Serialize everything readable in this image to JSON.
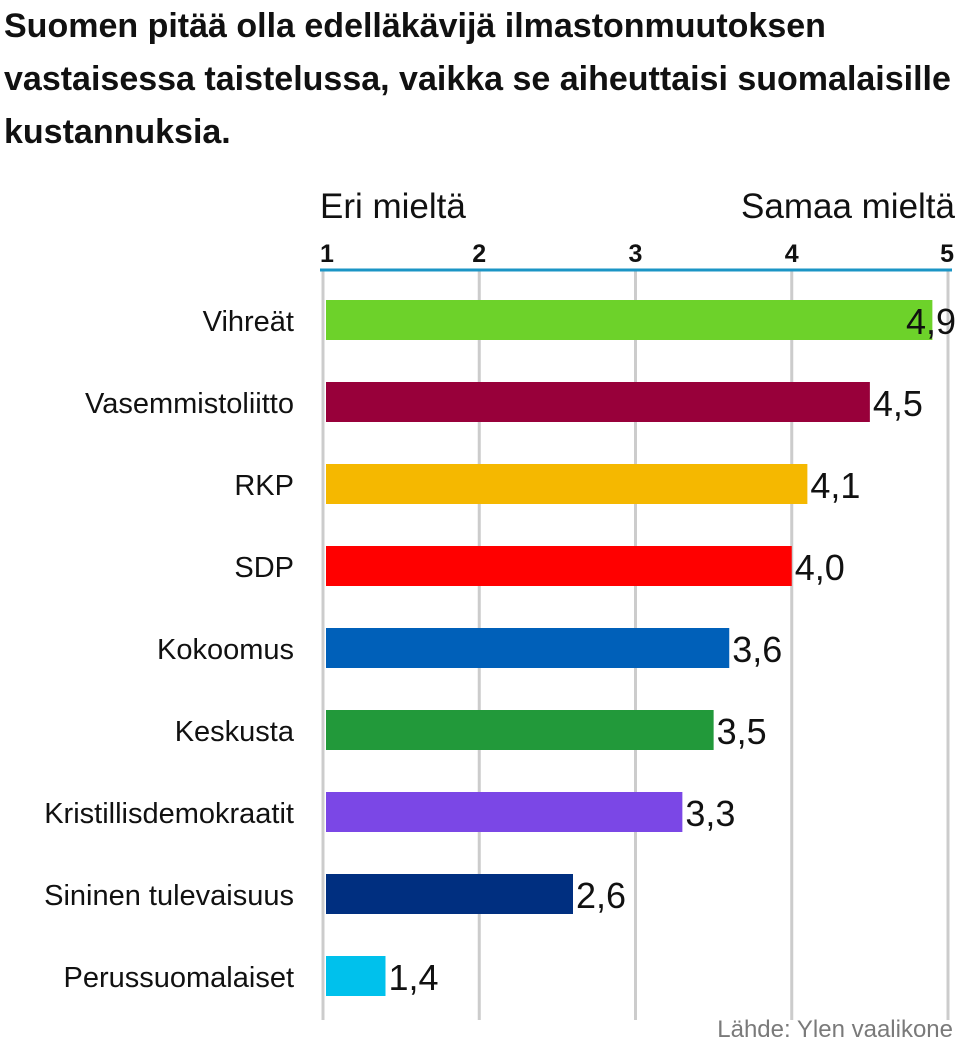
{
  "chart_data": {
    "type": "bar",
    "orientation": "horizontal",
    "title": "Suomen pitää olla edelläkävijä ilmastonmuutoksen vastaisessa taistelussa, vaikka se aiheuttaisi suomalaisille kustannuksia.",
    "scale_left_label": "Eri mieltä",
    "scale_right_label": "Samaa mieltä",
    "xlim": [
      1,
      5
    ],
    "xticks": [
      "1",
      "2",
      "3",
      "4",
      "5"
    ],
    "grid": true,
    "categories": [
      "Vihreät",
      "Vasemmistoliitto",
      "RKP",
      "SDP",
      "Kokoomus",
      "Keskusta",
      "Kristillisdemokraatit",
      "Sininen tulevaisuus",
      "Perussuomalaiset"
    ],
    "values": [
      4.9,
      4.5,
      4.1,
      4.0,
      3.6,
      3.5,
      3.3,
      2.6,
      1.4
    ],
    "value_labels": [
      "4,9",
      "4,5",
      "4,1",
      "4,0",
      "3,6",
      "3,5",
      "3,3",
      "2,6",
      "1,4"
    ],
    "colors": [
      "#6dd22a",
      "#98003a",
      "#f5b800",
      "#ff0000",
      "#0060b9",
      "#22993a",
      "#7b47e6",
      "#002f80",
      "#00c1ec"
    ],
    "axis_color": "#1b95c5",
    "grid_color": "#cccccc",
    "source": "Lähde: Ylen vaalikone"
  }
}
